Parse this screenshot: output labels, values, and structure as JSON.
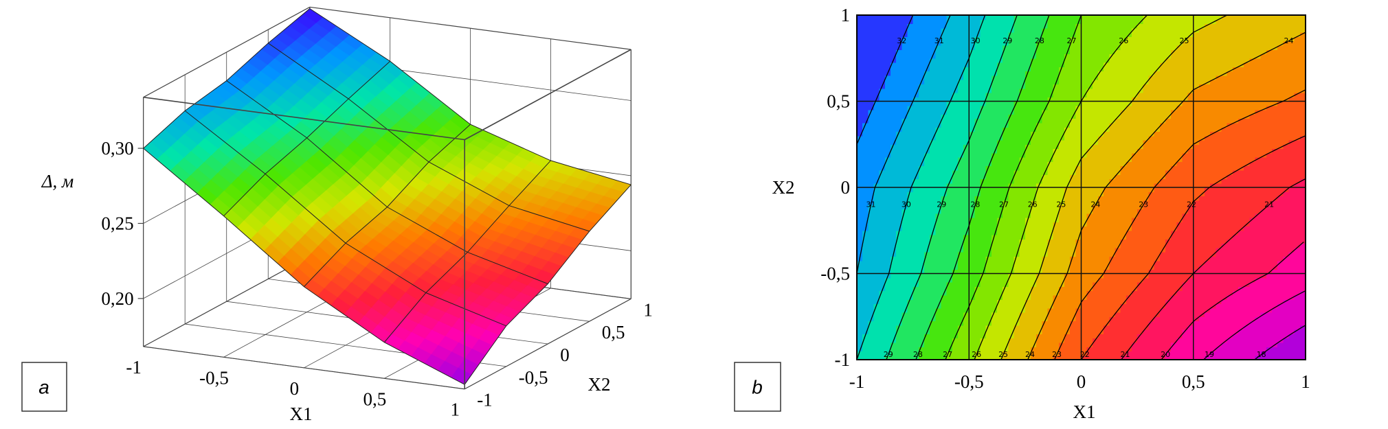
{
  "chart_data": [
    {
      "type": "surface3d",
      "panel_label": "a",
      "zlabel": "Δ, м",
      "xlabel": "X1",
      "ylabel": "X2",
      "x": [
        -1,
        -0.5,
        0,
        0.5,
        1
      ],
      "y": [
        -1,
        -0.5,
        0,
        0.5,
        1
      ],
      "z": [
        [
          0.3,
          0.262,
          0.222,
          0.192,
          0.171
        ],
        [
          0.31,
          0.275,
          0.236,
          0.21,
          0.195
        ],
        [
          0.315,
          0.284,
          0.245,
          0.222,
          0.208
        ],
        [
          0.325,
          0.295,
          0.26,
          0.238,
          0.228
        ],
        [
          0.333,
          0.305,
          0.27,
          0.253,
          0.244
        ]
      ],
      "xlim": [
        -1,
        1
      ],
      "ylim": [
        -1,
        1
      ],
      "zlim": [
        0.168,
        0.334
      ],
      "xticks": [
        -1,
        {
          "value": -0.5,
          "label": "-0,5"
        },
        0,
        {
          "value": 0.5,
          "label": "0,5"
        },
        1
      ],
      "yticks": [
        -1,
        {
          "value": -0.5,
          "label": "-0,5"
        },
        0,
        {
          "value": 0.5,
          "label": "0,5"
        },
        1
      ],
      "zticks": [
        {
          "value": 0.2,
          "label": "0,20"
        },
        {
          "value": 0.25,
          "label": "0,25"
        },
        {
          "value": 0.3,
          "label": "0,30"
        }
      ],
      "colorscale": [
        "#9a00e6",
        "#ff00b4",
        "#ff1e3c",
        "#ff7a00",
        "#d4e600",
        "#4ee600",
        "#00e6a8",
        "#0096ff",
        "#3c00ff"
      ]
    },
    {
      "type": "contour",
      "panel_label": "b",
      "xlabel": "X1",
      "ylabel": "X2",
      "x": [
        -1,
        -0.5,
        0,
        0.5,
        1
      ],
      "y": [
        -1,
        -0.5,
        0,
        0.5,
        1
      ],
      "z": [
        [
          30.0,
          26.2,
          22.0,
          19.2,
          17.0
        ],
        [
          31.0,
          27.5,
          23.5,
          21.0,
          19.5
        ],
        [
          31.5,
          28.4,
          24.5,
          22.2,
          20.8
        ],
        [
          32.5,
          29.5,
          26.0,
          23.8,
          22.8
        ],
        [
          33.5,
          30.5,
          27.0,
          25.3,
          24.3
        ]
      ],
      "levels": [
        18,
        19,
        20,
        21,
        22,
        23,
        24,
        25,
        26,
        27,
        28,
        29,
        30,
        31,
        32
      ],
      "xlim": [
        -1,
        1
      ],
      "ylim": [
        -1,
        1
      ],
      "xticks": [
        -1,
        {
          "value": -0.5,
          "label": "-0,5"
        },
        0,
        {
          "value": 0.5,
          "label": "0,5"
        },
        1
      ],
      "yticks": [
        -1,
        {
          "value": -0.5,
          "label": "-0,5"
        },
        0,
        {
          "value": 0.5,
          "label": "0,5"
        },
        1
      ],
      "colorscale": [
        "#9a00e6",
        "#ff00b4",
        "#ff1e3c",
        "#ff7a00",
        "#d4e600",
        "#4ee600",
        "#00e6a8",
        "#0096ff",
        "#3c00ff"
      ]
    }
  ]
}
